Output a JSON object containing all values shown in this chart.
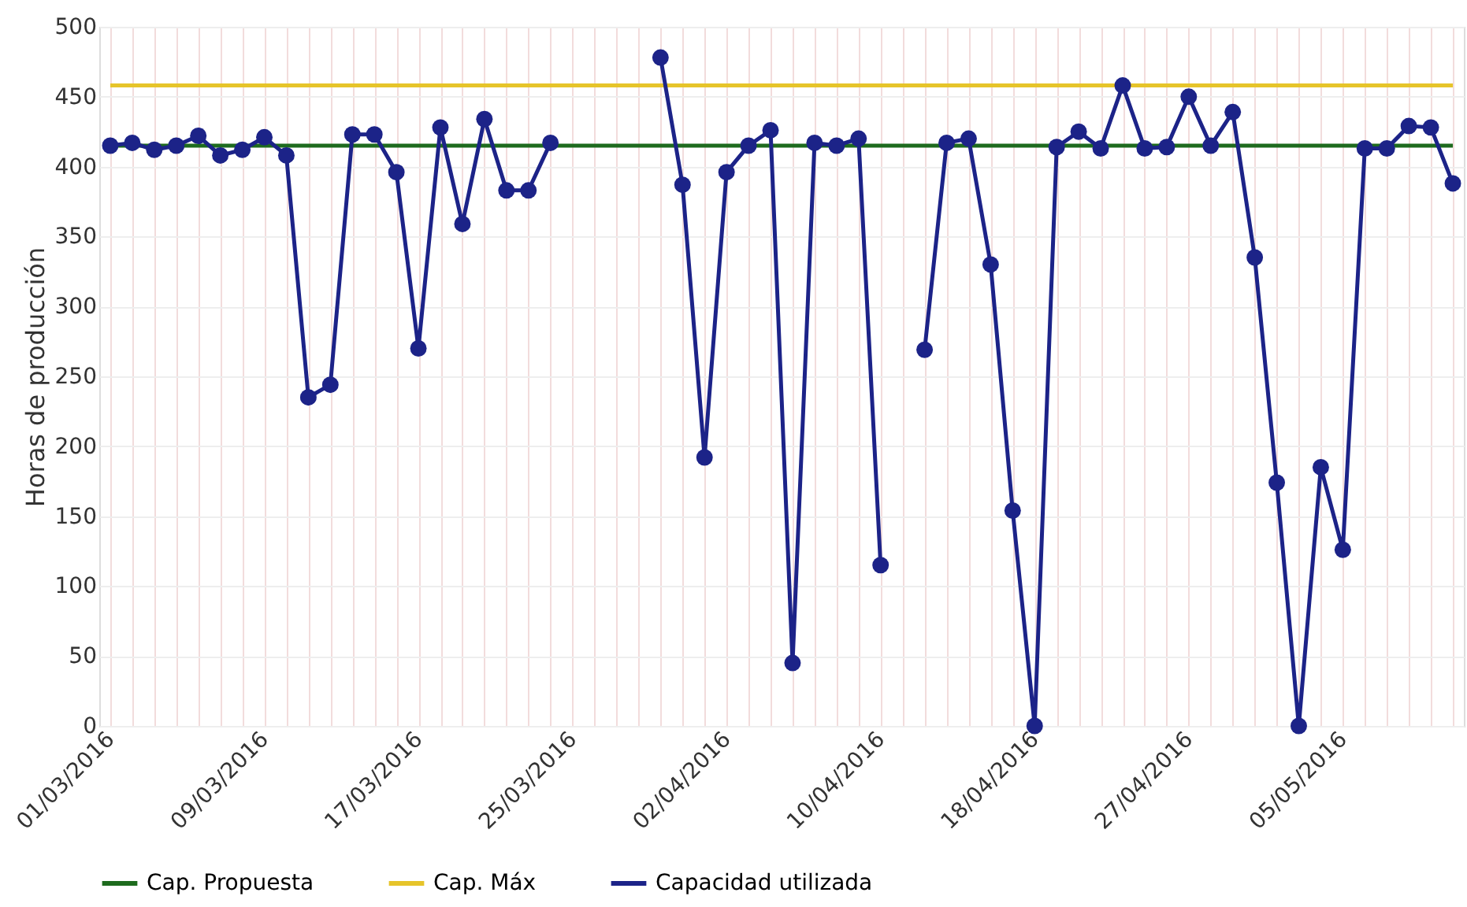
{
  "chart_data": {
    "type": "line",
    "ylabel": "Horas de producción",
    "ylim": [
      0,
      500
    ],
    "yticks": [
      0,
      50,
      100,
      150,
      200,
      250,
      300,
      350,
      400,
      450,
      500
    ],
    "grid": true,
    "legend": "bottom",
    "categories": [
      "01/03/2016",
      null,
      null,
      null,
      null,
      null,
      null,
      "09/03/2016",
      null,
      null,
      null,
      null,
      null,
      null,
      "17/03/2016",
      null,
      null,
      null,
      null,
      null,
      null,
      "25/03/2016",
      null,
      null,
      null,
      null,
      null,
      null,
      "02/04/2016",
      null,
      null,
      null,
      null,
      null,
      null,
      "10/04/2016",
      null,
      null,
      null,
      null,
      null,
      null,
      "18/04/2016",
      null,
      null,
      null,
      null,
      null,
      null,
      "27/04/2016",
      null,
      null,
      null,
      null,
      null,
      null,
      "05/05/2016",
      null,
      null,
      null,
      null,
      null
    ],
    "series": [
      {
        "name": "Cap. Propuesta",
        "color": "#1e6b1e",
        "marker": "none",
        "values": [
          415,
          415,
          415,
          415,
          415,
          415,
          415,
          415,
          415,
          415,
          415,
          415,
          415,
          415,
          415,
          415,
          415,
          415,
          415,
          415,
          415,
          415,
          415,
          415,
          415,
          415,
          415,
          415,
          415,
          415,
          415,
          415,
          415,
          415,
          415,
          415,
          415,
          415,
          415,
          415,
          415,
          415,
          415,
          415,
          415,
          415,
          415,
          415,
          415,
          415,
          415,
          415,
          415,
          415,
          415,
          415,
          415,
          415,
          415,
          415,
          415,
          415
        ]
      },
      {
        "name": "Cap. Máx",
        "color": "#e6c42a",
        "marker": "none",
        "values": [
          458,
          458,
          458,
          458,
          458,
          458,
          458,
          458,
          458,
          458,
          458,
          458,
          458,
          458,
          458,
          458,
          458,
          458,
          458,
          458,
          458,
          458,
          458,
          458,
          458,
          458,
          458,
          458,
          458,
          458,
          458,
          458,
          458,
          458,
          458,
          458,
          458,
          458,
          458,
          458,
          458,
          458,
          458,
          458,
          458,
          458,
          458,
          458,
          458,
          458,
          458,
          458,
          458,
          458,
          458,
          458,
          458,
          458,
          458,
          458,
          458,
          458
        ]
      },
      {
        "name": "Capacidad utilizada",
        "color": "#1c2388",
        "marker": "circle",
        "values": [
          415,
          417,
          412,
          415,
          422,
          408,
          412,
          421,
          408,
          235,
          244,
          423,
          423,
          396,
          270,
          428,
          359,
          434,
          383,
          383,
          417,
          null,
          null,
          null,
          null,
          478,
          387,
          192,
          396,
          415,
          426,
          45,
          417,
          415,
          420,
          115,
          null,
          269,
          417,
          420,
          330,
          154,
          0,
          414,
          425,
          413,
          458,
          413,
          414,
          450,
          415,
          439,
          335,
          174,
          0,
          185,
          126,
          413,
          413,
          429,
          428,
          388
        ]
      }
    ]
  }
}
